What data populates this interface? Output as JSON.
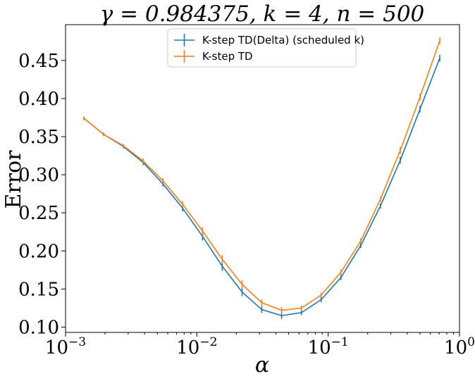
{
  "chart_data": {
    "type": "line",
    "title": "γ = 0.984375, k = 4, n = 500",
    "xlabel": "α",
    "ylabel": "Error",
    "xscale": "log",
    "xlim": [
      0.001,
      1
    ],
    "ylim": [
      0.093,
      0.497
    ],
    "x_tick_values": [
      0.001,
      0.01,
      0.1,
      1
    ],
    "x_tick_labels": [
      {
        "base": "10",
        "exp": "−3"
      },
      {
        "base": "10",
        "exp": "−2"
      },
      {
        "base": "10",
        "exp": "−1"
      },
      {
        "base": "10",
        "exp": "0"
      }
    ],
    "y_tick_values": [
      0.1,
      0.15,
      0.2,
      0.25,
      0.3,
      0.35,
      0.4,
      0.45
    ],
    "y_tick_labels": [
      "0.10",
      "0.15",
      "0.20",
      "0.25",
      "0.30",
      "0.35",
      "0.40",
      "0.45"
    ],
    "legend_position": "top-center",
    "grid": false,
    "x": [
      0.00138,
      0.00195,
      0.00276,
      0.0039,
      0.00552,
      0.0078,
      0.01105,
      0.0156,
      0.0221,
      0.0312,
      0.0442,
      0.0625,
      0.0884,
      0.125,
      0.177,
      0.25,
      0.354,
      0.5,
      0.707
    ],
    "series": [
      {
        "name": "K-step TD(Delta) (scheduled k)",
        "color": "#1f77b4",
        "values": [
          0.374,
          0.353,
          0.337,
          0.316,
          0.288,
          0.256,
          0.219,
          0.18,
          0.146,
          0.123,
          0.115,
          0.119,
          0.136,
          0.165,
          0.207,
          0.259,
          0.319,
          0.386,
          0.453
        ],
        "errors": [
          0.001,
          0.001,
          0.001,
          0.002,
          0.002,
          0.003,
          0.004,
          0.005,
          0.004,
          0.003,
          0.003,
          0.002,
          0.002,
          0.002,
          0.002,
          0.002,
          0.003,
          0.003,
          0.003
        ]
      },
      {
        "name": "K-step TD",
        "color": "#ff7f0e",
        "values": [
          0.374,
          0.353,
          0.338,
          0.318,
          0.292,
          0.261,
          0.226,
          0.189,
          0.156,
          0.132,
          0.122,
          0.125,
          0.142,
          0.172,
          0.213,
          0.268,
          0.332,
          0.402,
          0.476
        ],
        "errors": [
          0.001,
          0.001,
          0.001,
          0.002,
          0.002,
          0.003,
          0.004,
          0.004,
          0.004,
          0.003,
          0.003,
          0.002,
          0.002,
          0.002,
          0.002,
          0.002,
          0.003,
          0.003,
          0.003
        ]
      }
    ]
  }
}
